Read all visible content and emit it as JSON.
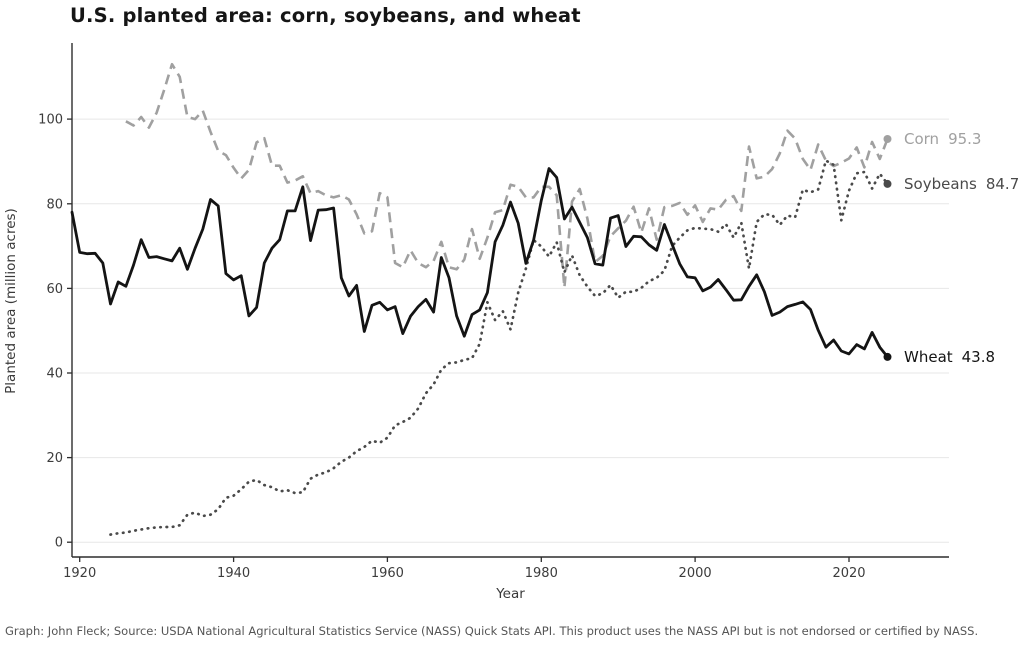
{
  "footer": {
    "text": "Graph: John Fleck; Source: USDA National Agricultural Statistics Service (NASS) Quick Stats API. This product uses the NASS API but is not endorsed or certified by NASS."
  },
  "chart_data": {
    "type": "line",
    "title": "U.S. planted area: corn, soybeans, and wheat",
    "xlabel": "Year",
    "ylabel": "Planted area (million acres)",
    "xlim": [
      1919,
      2033
    ],
    "ylim": [
      -3.5,
      118
    ],
    "x_ticks": [
      1920,
      1940,
      1960,
      1980,
      2000,
      2020
    ],
    "y_ticks": [
      0,
      20,
      40,
      60,
      80,
      100
    ],
    "grid": "horizontal",
    "legend_position": "right-end-labels",
    "grid_color": "#e7e7e7",
    "spine_color": "#2d2d2d",
    "tick_label_color": "#3c3c3c",
    "series": [
      {
        "name": "Corn",
        "end_label": "95.3",
        "color": "#a0a0a0",
        "line_style": "dashed",
        "start_year": 1926,
        "values": [
          99.5,
          98.5,
          100.5,
          98,
          101.5,
          107,
          113,
          110,
          100.5,
          100,
          102,
          97,
          92.5,
          91.5,
          88.5,
          86,
          88,
          94.5,
          95.5,
          89,
          89,
          85,
          85.5,
          86.5,
          82.5,
          83,
          82,
          81.5,
          82,
          81,
          77.5,
          73,
          73.5,
          82.5,
          81.5,
          66,
          65,
          69,
          66,
          65,
          66.5,
          71,
          65,
          64.5,
          66.8,
          74,
          67,
          72,
          78,
          78.5,
          84.5,
          84,
          81.5,
          81.5,
          84,
          84,
          82,
          60.2,
          80.5,
          83.5,
          76.5,
          66.2,
          67.7,
          72.3,
          74.2,
          76,
          79.3,
          73.2,
          78.9,
          71.5,
          79.2,
          79.5,
          80.2,
          77.4,
          79.6,
          75.7,
          78.9,
          78.6,
          80.9,
          81.8,
          78.3,
          93.5,
          86,
          86.4,
          88.2,
          91.9,
          97.3,
          95.4,
          90.6,
          88,
          94,
          90.2,
          88.9,
          89.7,
          90.7,
          93.3,
          88.6,
          94.6,
          90.6,
          95.3
        ]
      },
      {
        "name": "Soybeans",
        "end_label": "84.7",
        "color": "#4a4a4a",
        "line_style": "dotted",
        "start_year": 1924,
        "values": [
          1.8,
          2.1,
          2.3,
          2.7,
          3,
          3.3,
          3.5,
          3.6,
          3.6,
          4,
          6.5,
          7,
          6.2,
          6.5,
          7.8,
          10.5,
          11,
          12.5,
          14.3,
          14.7,
          13.5,
          13,
          12,
          12.3,
          11.6,
          11.8,
          15,
          16,
          16.5,
          17.5,
          19,
          20,
          21.5,
          22.5,
          24,
          23.5,
          24.7,
          27.6,
          28.4,
          29.4,
          31.6,
          35.2,
          37.3,
          40.8,
          42.3,
          42.5,
          43.1,
          43.5,
          46.9,
          56.7,
          52.5,
          54.6,
          50.3,
          59,
          64.7,
          71.4,
          69.9,
          67.5,
          70.9,
          63.8,
          67.8,
          63.1,
          60.4,
          58.2,
          58.8,
          60.8,
          57.8,
          59.2,
          59.2,
          60.1,
          61.7,
          62.5,
          64.2,
          70,
          72,
          73.7,
          74.3,
          74.1,
          74,
          73.4,
          75.2,
          72,
          75.5,
          64.7,
          75.7,
          77.5,
          77.4,
          75,
          77.2,
          76.8,
          83.3,
          82.7,
          83.4,
          90.2,
          89.2,
          76.1,
          83.1,
          87.2,
          87.5,
          83.6,
          87.1,
          84.7
        ]
      },
      {
        "name": "Wheat",
        "end_label": "43.8",
        "color": "#141414",
        "line_style": "solid",
        "start_year": 1919,
        "values": [
          78,
          68.5,
          68.2,
          68.3,
          66,
          56.3,
          61.5,
          60.5,
          65.5,
          71.5,
          67.3,
          67.5,
          67,
          66.5,
          69.5,
          64.5,
          69.5,
          74,
          81,
          79.5,
          63.5,
          62,
          63,
          53.5,
          55.5,
          66,
          69.5,
          71.5,
          78.3,
          78.3,
          84,
          71.3,
          78.5,
          78.6,
          79,
          62.5,
          58.2,
          60.7,
          49.8,
          56,
          56.7,
          54.9,
          55.7,
          49.3,
          53.4,
          55.7,
          57.4,
          54.4,
          67.3,
          62.5,
          53.5,
          48.7,
          53.8,
          54.9,
          59,
          71,
          74.9,
          80.4,
          75.4,
          65.9,
          71.4,
          80.8,
          88.3,
          86.2,
          76.4,
          79.2,
          75.6,
          72,
          65.8,
          65.5,
          76.6,
          77.2,
          69.9,
          72.3,
          72.2,
          70.3,
          69,
          75.1,
          70.4,
          65.8,
          62.7,
          62.5,
          59.4,
          60.3,
          62.1,
          59.7,
          57.2,
          57.3,
          60.5,
          63.2,
          59.2,
          53.6,
          54.4,
          55.7,
          56.2,
          56.8,
          55,
          50.1,
          46.1,
          47.8,
          45.2,
          44.5,
          46.7,
          45.7,
          49.6,
          46.1,
          43.8
        ]
      }
    ]
  }
}
